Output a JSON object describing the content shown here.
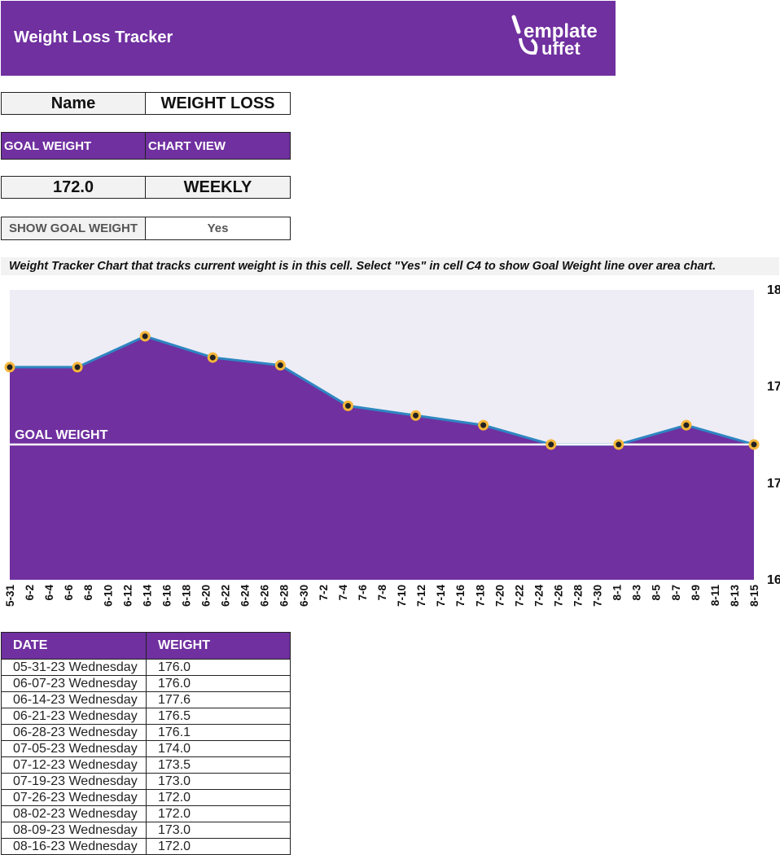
{
  "header": {
    "title": "Weight Loss Tracker",
    "logo_line1": "emplate",
    "logo_line2": "uffet"
  },
  "fields": {
    "name_label": "Name",
    "name_value": "WEIGHT LOSS",
    "goal_label": "GOAL WEIGHT",
    "chart_view_label": "CHART VIEW",
    "goal_value": "172.0",
    "chart_view_value": "WEEKLY",
    "show_goal_label": "SHOW GOAL WEIGHT",
    "show_goal_value": "Yes"
  },
  "note": "Weight Tracker Chart that tracks current weight is in this cell. Select \"Yes\" in cell C4 to show Goal Weight line over area chart.",
  "colors": {
    "brand": "#7030a0",
    "plot_bg": "#eeedf5",
    "line": "#2e86c1",
    "marker_fill": "#222222",
    "marker_edge": "#f4b63a",
    "goal_line": "#ffffff"
  },
  "chart_data": {
    "type": "area",
    "x": [
      "5-31",
      "6-7",
      "6-14",
      "6-21",
      "6-28",
      "7-5",
      "7-12",
      "7-19",
      "7-26",
      "8-2",
      "8-9",
      "8-16"
    ],
    "values": [
      176.0,
      176.0,
      177.6,
      176.5,
      176.1,
      174.0,
      173.5,
      173.0,
      172.0,
      172.0,
      173.0,
      172.0
    ],
    "x_tick_labels": [
      "5-31",
      "6-2",
      "6-4",
      "6-6",
      "6-8",
      "6-10",
      "6-12",
      "6-14",
      "6-16",
      "6-18",
      "6-20",
      "6-22",
      "6-24",
      "6-26",
      "6-28",
      "6-30",
      "7-2",
      "7-4",
      "7-6",
      "7-8",
      "7-10",
      "7-12",
      "7-14",
      "7-16",
      "7-18",
      "7-20",
      "7-22",
      "7-24",
      "7-26",
      "7-28",
      "7-30",
      "8-1",
      "8-3",
      "8-5",
      "8-7",
      "8-9",
      "8-11",
      "8-13",
      "8-15"
    ],
    "y_tick_labels": [
      "18",
      "17",
      "17",
      "16"
    ],
    "ylim": [
      165,
      180
    ],
    "goal_weight": 172.0,
    "goal_label": "GOAL WEIGHT",
    "y_axis_side": "right"
  },
  "table": {
    "headers": [
      "DATE",
      "WEIGHT"
    ],
    "rows": [
      [
        "05-31-23 Wednesday",
        "176.0"
      ],
      [
        "06-07-23 Wednesday",
        "176.0"
      ],
      [
        "06-14-23 Wednesday",
        "177.6"
      ],
      [
        "06-21-23 Wednesday",
        "176.5"
      ],
      [
        "06-28-23 Wednesday",
        "176.1"
      ],
      [
        "07-05-23 Wednesday",
        "174.0"
      ],
      [
        "07-12-23 Wednesday",
        "173.5"
      ],
      [
        "07-19-23 Wednesday",
        "173.0"
      ],
      [
        "07-26-23 Wednesday",
        "172.0"
      ],
      [
        "08-02-23 Wednesday",
        "172.0"
      ],
      [
        "08-09-23 Wednesday",
        "173.0"
      ],
      [
        "08-16-23 Wednesday",
        "172.0"
      ]
    ]
  }
}
